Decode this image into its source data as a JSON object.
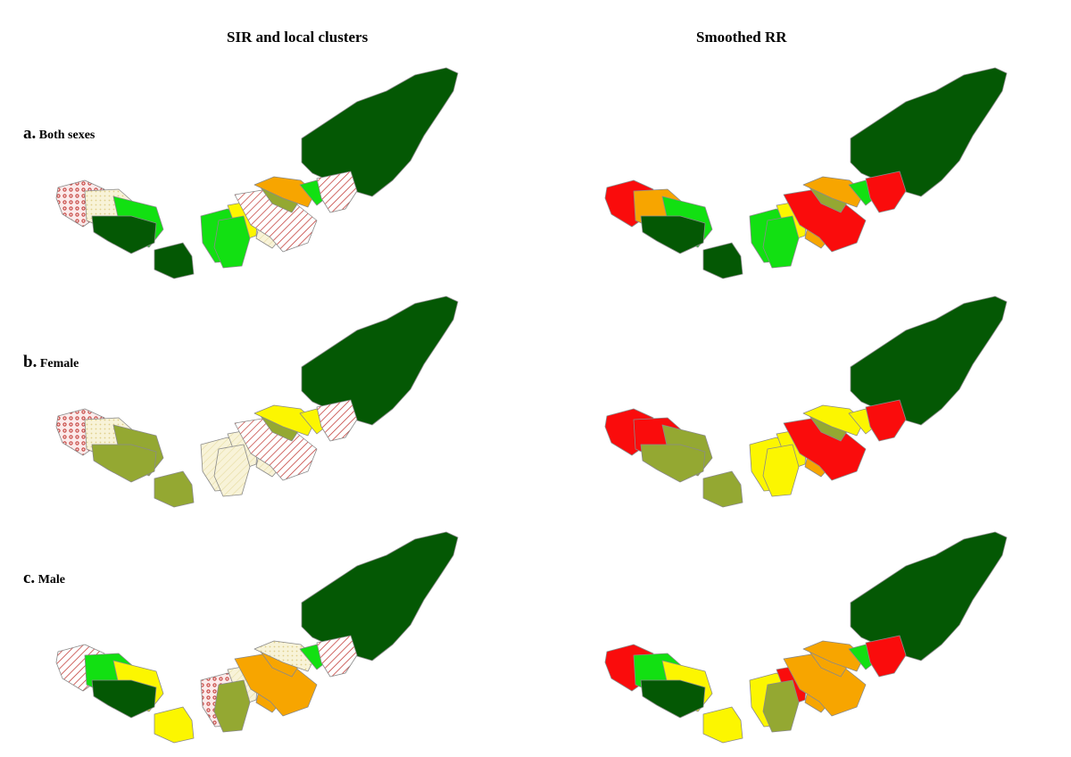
{
  "titles": {
    "left": "SIR and local clusters",
    "right": "Smoothed RR"
  },
  "rows": [
    {
      "letter": "a.",
      "label": "Both sexes"
    },
    {
      "letter": "b.",
      "label": "Female"
    },
    {
      "letter": "c.",
      "label": "Male"
    }
  ],
  "colors": {
    "dark_green": "#045804",
    "bright_green": "#12e012",
    "olive": "#94a832",
    "yellow": "#fcf600",
    "orange": "#f7a500",
    "red": "#fa0c0c",
    "cream": "#f8f3d8"
  },
  "maps": {
    "a_left": [
      "dark_green",
      "dark_green",
      "bright_green",
      "yellow",
      "hatch_cream",
      "hatch_red",
      "bright_green",
      "olive",
      "orange",
      "bright_green",
      "hatch_red",
      "cross_red",
      "dots_cream",
      "bright_green",
      "dark_green"
    ],
    "a_right": [
      "dark_green",
      "dark_green",
      "bright_green",
      "yellow",
      "orange",
      "red",
      "bright_green",
      "olive",
      "orange",
      "bright_green",
      "red",
      "red",
      "orange",
      "bright_green",
      "dark_green"
    ],
    "b_left": [
      "dark_green",
      "olive",
      "hatch_cream",
      "hatch_cream",
      "hatch_cream",
      "hatch_red",
      "hatch_cream",
      "olive",
      "yellow",
      "yellow",
      "hatch_red",
      "cross_red",
      "dots_cream",
      "olive",
      "olive"
    ],
    "b_right": [
      "dark_green",
      "olive",
      "yellow",
      "yellow",
      "orange",
      "red",
      "yellow",
      "olive",
      "yellow",
      "yellow",
      "red",
      "red",
      "red",
      "olive",
      "olive"
    ],
    "c_left": [
      "dark_green",
      "yellow",
      "cross_red",
      "hatch_cream",
      "orange",
      "orange",
      "olive",
      "orange",
      "dots_cream",
      "bright_green",
      "hatch_red",
      "hatch_red",
      "bright_green",
      "yellow",
      "dark_green"
    ],
    "c_right": [
      "dark_green",
      "yellow",
      "yellow",
      "red",
      "orange",
      "orange",
      "olive",
      "orange",
      "orange",
      "bright_green",
      "red",
      "red",
      "bright_green",
      "yellow",
      "dark_green"
    ]
  }
}
